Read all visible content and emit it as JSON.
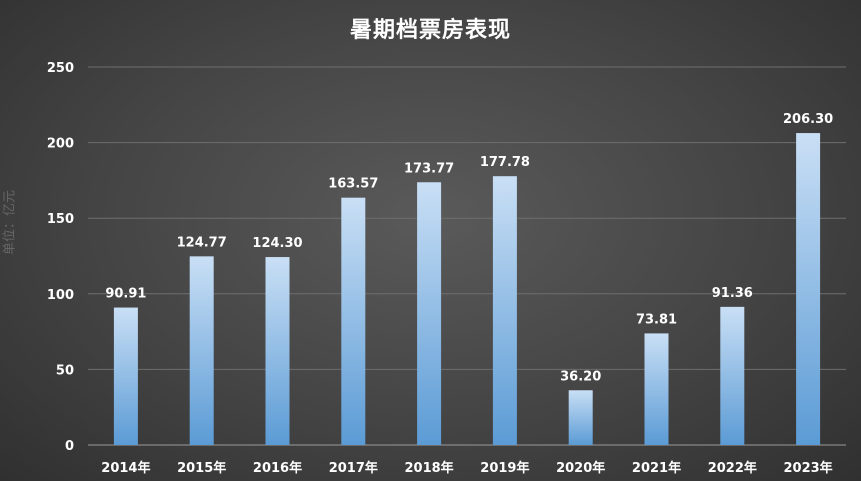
{
  "chart_data": {
    "type": "bar",
    "title": "暑期档票房表现",
    "ylabel": "单位：亿元",
    "xlabel": "",
    "categories": [
      "2014年",
      "2015年",
      "2016年",
      "2017年",
      "2018年",
      "2019年",
      "2020年",
      "2021年",
      "2022年",
      "2023年"
    ],
    "values": [
      90.91,
      124.77,
      124.3,
      163.57,
      173.77,
      177.78,
      36.2,
      73.81,
      91.36,
      206.3
    ],
    "data_labels": [
      "90.91",
      "124.77",
      "124.30",
      "163.57",
      "173.77",
      "177.78",
      "36.20",
      "73.81",
      "91.36",
      "206.30"
    ],
    "ylim": [
      0,
      250
    ],
    "yticks": [
      0,
      50,
      100,
      150,
      200,
      250
    ],
    "grid": true,
    "legend": "none",
    "bar_color_top": "#c9dff5",
    "bar_color_bottom": "#5b9bd5"
  }
}
